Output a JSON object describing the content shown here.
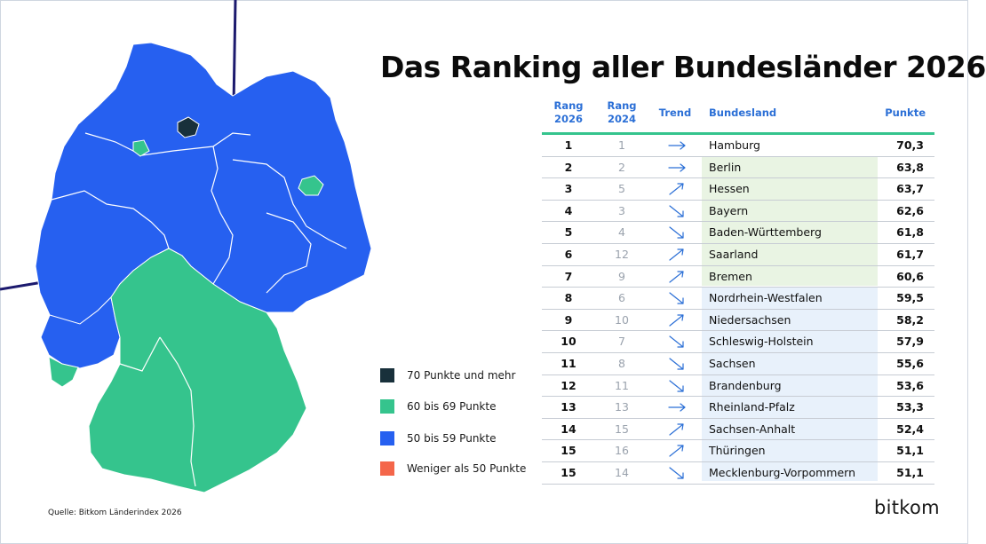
{
  "title": "Das Ranking aller Bundesländer 2026",
  "columns": {
    "rank_2026": [
      "Rang",
      "2026"
    ],
    "rank_2024": [
      "Rang",
      "2024"
    ],
    "trend": "Trend",
    "state": "Bundesland",
    "points": "Punkte"
  },
  "rows": [
    {
      "rank": "1",
      "prev": "1",
      "trend": "flat",
      "state": "Hamburg",
      "points": "70,3"
    },
    {
      "rank": "2",
      "prev": "2",
      "trend": "flat",
      "state": "Berlin",
      "points": "63,8"
    },
    {
      "rank": "3",
      "prev": "5",
      "trend": "up",
      "state": "Hessen",
      "points": "63,7"
    },
    {
      "rank": "4",
      "prev": "3",
      "trend": "down",
      "state": "Bayern",
      "points": "62,6"
    },
    {
      "rank": "5",
      "prev": "4",
      "trend": "down",
      "state": "Baden-Württemberg",
      "points": "61,8"
    },
    {
      "rank": "6",
      "prev": "12",
      "trend": "up",
      "state": "Saarland",
      "points": "61,7"
    },
    {
      "rank": "7",
      "prev": "9",
      "trend": "up",
      "state": "Bremen",
      "points": "60,6"
    },
    {
      "rank": "8",
      "prev": "6",
      "trend": "down",
      "state": "Nordrhein-Westfalen",
      "points": "59,5"
    },
    {
      "rank": "9",
      "prev": "10",
      "trend": "up",
      "state": "Niedersachsen",
      "points": "58,2"
    },
    {
      "rank": "10",
      "prev": "7",
      "trend": "down",
      "state": "Schleswig-Holstein",
      "points": "57,9"
    },
    {
      "rank": "11",
      "prev": "8",
      "trend": "down",
      "state": "Sachsen",
      "points": "55,6"
    },
    {
      "rank": "12",
      "prev": "11",
      "trend": "down",
      "state": "Brandenburg",
      "points": "53,6"
    },
    {
      "rank": "13",
      "prev": "13",
      "trend": "flat",
      "state": "Rheinland-Pfalz",
      "points": "53,3"
    },
    {
      "rank": "14",
      "prev": "15",
      "trend": "up",
      "state": "Sachsen-Anhalt",
      "points": "52,4"
    },
    {
      "rank": "15",
      "prev": "16",
      "trend": "up",
      "state": "Thüringen",
      "points": "51,1"
    },
    {
      "rank": "15",
      "prev": "14",
      "trend": "down",
      "state": "Mecklenburg-Vorpommern",
      "points": "51,1"
    }
  ],
  "legend": [
    {
      "label": "70 Punkte und mehr",
      "color": "#18303b"
    },
    {
      "label": "60 bis 69 Punkte",
      "color": "#35c48d"
    },
    {
      "label": "50 bis 59 Punkte",
      "color": "#2660f0"
    },
    {
      "label": "Weniger als 50 Punkte",
      "color": "#f4664a"
    }
  ],
  "colors": {
    "accent_blue": "#2b6fd6",
    "rule_green": "#35c48d",
    "highlight_green": "#e9f4e3",
    "highlight_blue": "#e8f1fb",
    "decor_line": "#1c1a6e",
    "map_blue": "#2660f0",
    "map_green": "#35c48d",
    "map_dark": "#18303b"
  },
  "icons": {
    "up": "arrow-up-right-icon",
    "down": "arrow-down-right-icon",
    "flat": "arrow-right-icon"
  },
  "source": "Quelle: Bitkom Länderindex 2026",
  "brand": "bitkom"
}
